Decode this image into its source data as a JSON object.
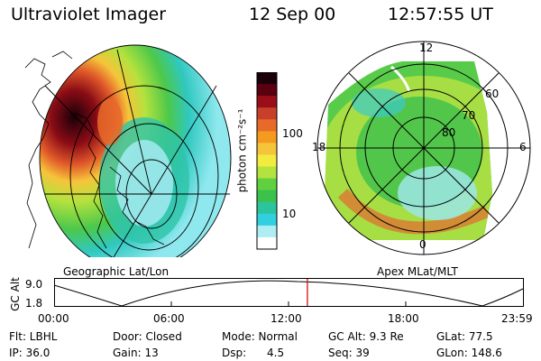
{
  "header": {
    "instrument": "Ultraviolet Imager",
    "date": "12 Sep 00",
    "time": "12:57:55 UT"
  },
  "colorbar": {
    "unit_label": "photon cm⁻²s⁻¹",
    "ticks": [
      "100",
      "10"
    ],
    "colors": [
      "#1a0008",
      "#5a0010",
      "#9a0e18",
      "#c8402a",
      "#e86a2a",
      "#f49a1e",
      "#f6c43a",
      "#f2ec40",
      "#b4e23e",
      "#60d040",
      "#3cc24c",
      "#2cc49c",
      "#30d0e0",
      "#aeeef2",
      "#ffffff"
    ]
  },
  "left_map": {
    "caption": "Geographic Lat/Lon"
  },
  "right_map": {
    "caption": "Apex MLat/MLT",
    "mlt_labels": [
      "12",
      "18",
      "6",
      "0"
    ],
    "lat_labels": [
      "60",
      "70",
      "80"
    ]
  },
  "timeline": {
    "axis_label": "GC Alt",
    "y_ticks": [
      "9.0",
      "1.8"
    ],
    "x_ticks": [
      "00:00",
      "06:00",
      "12:00",
      "18:00",
      "23:59"
    ],
    "current_time_hours": 12.966,
    "marker_color": "#d01010"
  },
  "info": {
    "flt": "Flt: LBHL",
    "ip": "IP: 36.0",
    "door": "Door: Closed",
    "gain": "Gain: 13",
    "mode": "Mode: Normal",
    "dsp_label": "Dsp:",
    "dsp_value": "4.5",
    "gc_alt": "GC Alt: 9.3 Re",
    "seq": "Seq: 39",
    "glat": "GLat:  77.5",
    "glon": "GLon: 148.6"
  }
}
